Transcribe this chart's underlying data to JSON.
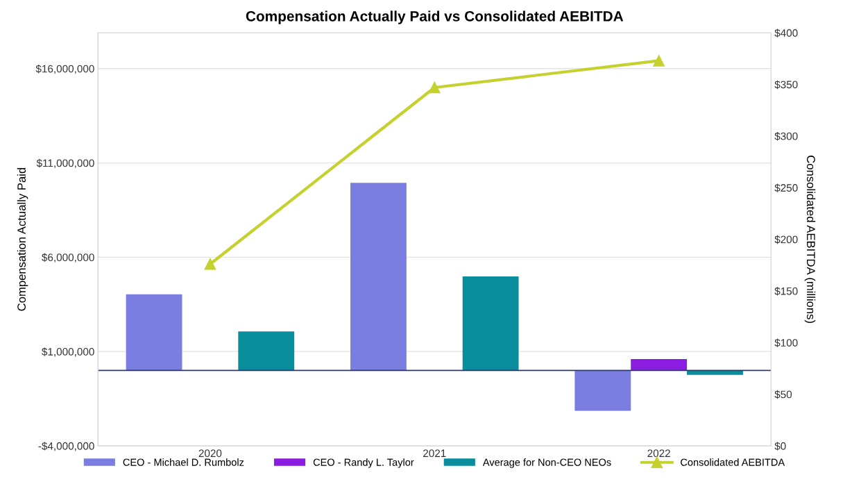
{
  "chart_data": {
    "type": "bar",
    "title": "Compensation Actually Paid vs Consolidated AEBITDA",
    "categories": [
      "2020",
      "2021",
      "2022"
    ],
    "ylabel": "Compensation Actually Paid",
    "y2label": "Consolidated AEBITDA (millions)",
    "series": [
      {
        "name": "CEO - Michael D. Rumbolz",
        "color": "#7b7ee0",
        "values": [
          4030000,
          9940000,
          -2140000
        ]
      },
      {
        "name": "CEO - Randy L. Taylor",
        "color": "#8a1de0",
        "values": [
          null,
          null,
          600000
        ]
      },
      {
        "name": "Average for Non-CEO NEOs",
        "color": "#0a8d9c",
        "values": [
          2060000,
          4980000,
          -240000
        ]
      },
      {
        "name": "Consolidated AEBITDA",
        "type": "line",
        "axis": "y2",
        "color": "#c5d12e",
        "marker": "triangle",
        "values": [
          176,
          347,
          373
        ]
      }
    ],
    "ylim": [
      -4000000,
      17900000
    ],
    "yticks": [
      {
        "value": -4000000,
        "label": "-$4,000,000"
      },
      {
        "value": 1000000,
        "label": "$1,000,000"
      },
      {
        "value": 6000000,
        "label": "$6,000,000"
      },
      {
        "value": 11000000,
        "label": "$11,000,000"
      },
      {
        "value": 16000000,
        "label": "$16,000,000"
      }
    ],
    "y2lim": [
      0,
      400
    ],
    "y2ticks": [
      {
        "value": 0,
        "label": "$0"
      },
      {
        "value": 50,
        "label": "$50"
      },
      {
        "value": 100,
        "label": "$100"
      },
      {
        "value": 150,
        "label": "$150"
      },
      {
        "value": 200,
        "label": "$200"
      },
      {
        "value": 250,
        "label": "$250"
      },
      {
        "value": 300,
        "label": "$300"
      },
      {
        "value": 350,
        "label": "$350"
      },
      {
        "value": 400,
        "label": "$400"
      }
    ],
    "ref_lines": [
      {
        "axis": "y",
        "value": 0,
        "color": "#2e3a6e"
      }
    ],
    "grid": "y",
    "legend": "bottom"
  }
}
